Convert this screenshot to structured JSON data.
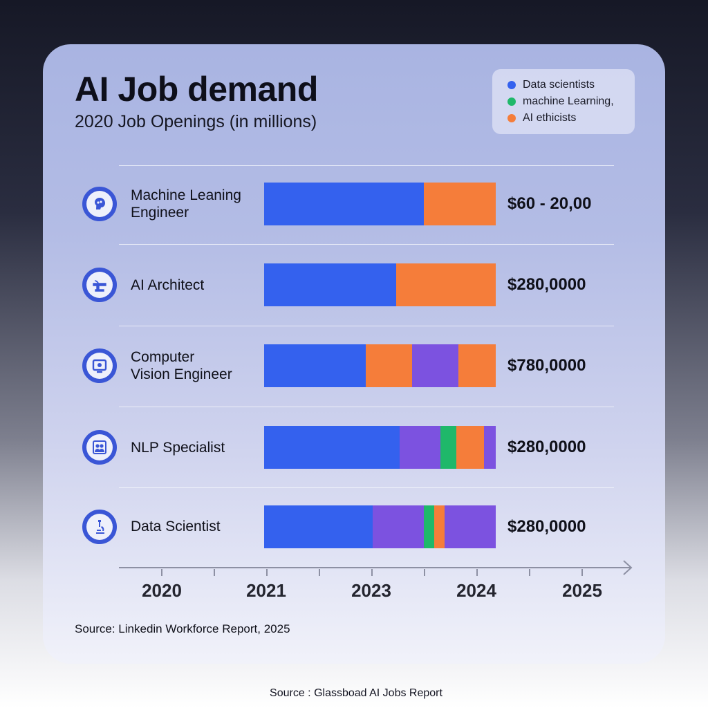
{
  "title": "AI Job demand",
  "subtitle": "2020 Job Openings (in millions)",
  "legend": [
    {
      "label": "Data scientists",
      "color": "#3461ee"
    },
    {
      "label": "machine Learning,",
      "color": "#1fb86a"
    },
    {
      "label": "AI ethicists",
      "color": "#f57d3a"
    }
  ],
  "chart_data": {
    "type": "bar",
    "orientation": "horizontal",
    "stacked": true,
    "title": "AI Job demand",
    "subtitle": "2020 Job Openings (in millions)",
    "categories": [
      "Machine Leaning Engineer",
      "AI Architect",
      "Computer Vision Engineer",
      "NLP Specialist",
      "Data Scientist"
    ],
    "values_text": [
      "$60 - 20,00",
      "$280,0000",
      "$780,0000",
      "$280,0000",
      "$280,0000"
    ],
    "segment_colors": {
      "blue": "#3461ee",
      "orange": "#f57d3a",
      "purple": "#7c52e0",
      "green": "#1fb86a"
    },
    "bars": [
      {
        "segments": [
          {
            "color": "blue",
            "value": 0.69
          },
          {
            "color": "orange",
            "value": 0.31
          }
        ]
      },
      {
        "segments": [
          {
            "color": "blue",
            "value": 0.57
          },
          {
            "color": "orange",
            "value": 0.43
          }
        ]
      },
      {
        "segments": [
          {
            "color": "blue",
            "value": 0.44
          },
          {
            "color": "orange",
            "value": 0.2
          },
          {
            "color": "purple",
            "value": 0.2
          },
          {
            "color": "orange",
            "value": 0.16
          }
        ]
      },
      {
        "segments": [
          {
            "color": "blue",
            "value": 0.585
          },
          {
            "color": "purple",
            "value": 0.175
          },
          {
            "color": "green",
            "value": 0.07
          },
          {
            "color": "orange",
            "value": 0.12
          },
          {
            "color": "purple",
            "value": 0.05
          }
        ]
      },
      {
        "segments": [
          {
            "color": "blue",
            "value": 0.47
          },
          {
            "color": "purple",
            "value": 0.22
          },
          {
            "color": "green",
            "value": 0.045
          },
          {
            "color": "orange",
            "value": 0.045
          },
          {
            "color": "purple",
            "value": 0.22
          }
        ]
      }
    ],
    "x_ticks": [
      "2020",
      "2021",
      "2023",
      "2024",
      "2025"
    ],
    "legend_position": "top-right",
    "grid": true
  },
  "rows": [
    {
      "label_line1": "Machine Leaning",
      "label_line2": "Engineer",
      "icon": "brain-icon"
    },
    {
      "label_line1": "AI Architect",
      "label_line2": "",
      "icon": "architecture-icon"
    },
    {
      "label_line1": "Computer",
      "label_line2": "Vision Engineer",
      "icon": "vision-icon"
    },
    {
      "label_line1": "NLP Specialist",
      "label_line2": "",
      "icon": "people-icon"
    },
    {
      "label_line1": "Data Scientist",
      "label_line2": "",
      "icon": "microscope-icon"
    }
  ],
  "card_source": "Source: Linkedin Workforce Report, 2025",
  "footer_source": "Source : Glassboad AI Jobs Report"
}
